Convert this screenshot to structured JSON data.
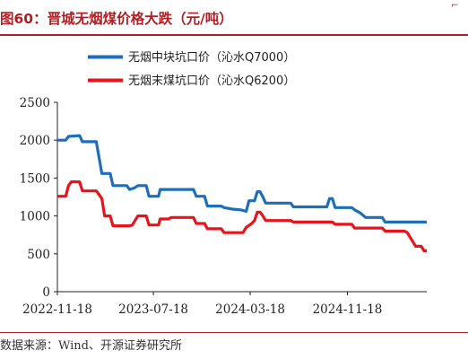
{
  "header": {
    "title": "图60：晋城无烟煤价格大跌（元/吨）",
    "corner_mark": "⌐"
  },
  "source": "数据来源：Wind、开源证券研究所",
  "colors": {
    "title": "#b11f24",
    "series1": "#1f6fb8",
    "series2": "#e8141b"
  },
  "chart_data": {
    "type": "line",
    "title": "",
    "xlabel": "",
    "ylabel": "",
    "ylim": [
      0,
      2500
    ],
    "yticks": [
      0,
      500,
      1000,
      1500,
      2000,
      2500
    ],
    "x_ticks": [
      "2022-11-18",
      "2023-07-18",
      "2024-03-18",
      "2024-11-18"
    ],
    "x_range": [
      "2022-11-18",
      "2025-06-06"
    ],
    "grid": false,
    "legend_position": "top-center",
    "series": [
      {
        "name": "无烟中块坑口价（沁水Q7000）",
        "color": "#1f6fb8",
        "points": [
          [
            "2022-11-18",
            2000
          ],
          [
            "2022-12-09",
            2000
          ],
          [
            "2022-12-16",
            2050
          ],
          [
            "2023-01-13",
            2060
          ],
          [
            "2023-01-20",
            1980
          ],
          [
            "2023-02-24",
            1980
          ],
          [
            "2023-03-10",
            1560
          ],
          [
            "2023-03-31",
            1560
          ],
          [
            "2023-04-07",
            1400
          ],
          [
            "2023-05-12",
            1400
          ],
          [
            "2023-05-19",
            1350
          ],
          [
            "2023-05-31",
            1370
          ],
          [
            "2023-06-09",
            1400
          ],
          [
            "2023-06-30",
            1400
          ],
          [
            "2023-07-07",
            1260
          ],
          [
            "2023-07-31",
            1260
          ],
          [
            "2023-08-04",
            1350
          ],
          [
            "2023-10-27",
            1350
          ],
          [
            "2023-11-03",
            1260
          ],
          [
            "2023-11-24",
            1260
          ],
          [
            "2023-12-01",
            1130
          ],
          [
            "2024-01-05",
            1130
          ],
          [
            "2024-01-12",
            1110
          ],
          [
            "2024-02-02",
            1090
          ],
          [
            "2024-02-23",
            1080
          ],
          [
            "2024-03-08",
            1060
          ],
          [
            "2024-03-15",
            1200
          ],
          [
            "2024-03-29",
            1200
          ],
          [
            "2024-04-05",
            1320
          ],
          [
            "2024-04-12",
            1320
          ],
          [
            "2024-04-19",
            1250
          ],
          [
            "2024-04-26",
            1170
          ],
          [
            "2024-06-28",
            1170
          ],
          [
            "2024-07-05",
            1120
          ],
          [
            "2024-09-27",
            1120
          ],
          [
            "2024-10-04",
            1230
          ],
          [
            "2024-10-11",
            1230
          ],
          [
            "2024-10-18",
            1110
          ],
          [
            "2024-11-29",
            1110
          ],
          [
            "2024-12-06",
            1080
          ],
          [
            "2024-12-20",
            1040
          ],
          [
            "2025-01-03",
            980
          ],
          [
            "2025-02-14",
            980
          ],
          [
            "2025-02-21",
            920
          ],
          [
            "2025-06-06",
            920
          ]
        ]
      },
      {
        "name": "无烟末煤坑口价（沁水Q6200）",
        "color": "#e8141b",
        "points": [
          [
            "2022-11-18",
            1260
          ],
          [
            "2022-12-09",
            1260
          ],
          [
            "2022-12-16",
            1400
          ],
          [
            "2022-12-23",
            1450
          ],
          [
            "2023-01-13",
            1450
          ],
          [
            "2023-01-20",
            1330
          ],
          [
            "2023-02-24",
            1330
          ],
          [
            "2023-03-10",
            1230
          ],
          [
            "2023-03-17",
            1000
          ],
          [
            "2023-03-31",
            1000
          ],
          [
            "2023-04-07",
            870
          ],
          [
            "2023-05-19",
            870
          ],
          [
            "2023-05-26",
            880
          ],
          [
            "2023-06-09",
            1000
          ],
          [
            "2023-06-30",
            1000
          ],
          [
            "2023-07-07",
            880
          ],
          [
            "2023-07-31",
            880
          ],
          [
            "2023-08-04",
            960
          ],
          [
            "2023-08-25",
            960
          ],
          [
            "2023-09-01",
            980
          ],
          [
            "2023-10-27",
            980
          ],
          [
            "2023-11-03",
            900
          ],
          [
            "2023-11-24",
            900
          ],
          [
            "2023-12-01",
            830
          ],
          [
            "2024-01-05",
            830
          ],
          [
            "2024-01-12",
            780
          ],
          [
            "2024-02-29",
            780
          ],
          [
            "2024-03-08",
            850
          ],
          [
            "2024-03-22",
            900
          ],
          [
            "2024-03-29",
            940
          ],
          [
            "2024-04-05",
            1050
          ],
          [
            "2024-04-12",
            1050
          ],
          [
            "2024-04-19",
            1000
          ],
          [
            "2024-04-26",
            940
          ],
          [
            "2024-06-28",
            940
          ],
          [
            "2024-07-05",
            920
          ],
          [
            "2024-10-11",
            920
          ],
          [
            "2024-10-18",
            890
          ],
          [
            "2024-11-29",
            890
          ],
          [
            "2024-12-06",
            840
          ],
          [
            "2025-02-14",
            840
          ],
          [
            "2025-02-21",
            800
          ],
          [
            "2025-04-11",
            800
          ],
          [
            "2025-04-18",
            780
          ],
          [
            "2025-05-09",
            600
          ],
          [
            "2025-05-23",
            600
          ],
          [
            "2025-05-30",
            540
          ],
          [
            "2025-06-06",
            540
          ]
        ]
      }
    ]
  }
}
